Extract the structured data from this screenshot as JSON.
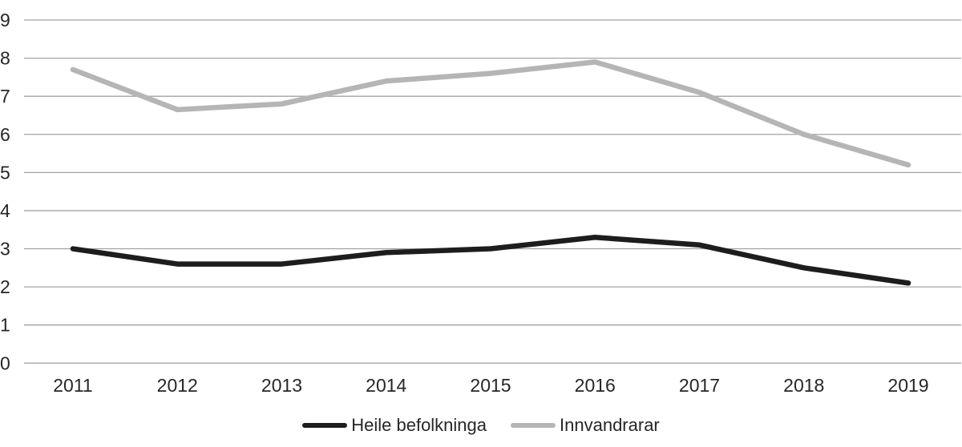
{
  "chart_data": {
    "type": "line",
    "title": "",
    "xlabel": "",
    "ylabel": "",
    "categories": [
      "2011",
      "2012",
      "2013",
      "2014",
      "2015",
      "2016",
      "2017",
      "2018",
      "2019"
    ],
    "series": [
      {
        "name": "Heile befolkninga",
        "color": "#1d1d1b",
        "values": [
          3.0,
          2.6,
          2.6,
          2.9,
          3.0,
          3.3,
          3.1,
          2.5,
          2.1
        ]
      },
      {
        "name": "Innvandrarar",
        "color": "#b5b5b5",
        "values": [
          7.7,
          6.65,
          6.8,
          7.4,
          7.6,
          7.9,
          7.1,
          6.0,
          5.2
        ]
      }
    ],
    "ylim": [
      0,
      9
    ],
    "ytick_interval": 1,
    "yticks": [
      "0",
      "1",
      "2",
      "3",
      "4",
      "5",
      "6",
      "7",
      "8",
      "9"
    ],
    "grid": "horizontal",
    "gridline_color": "#a3a3a3",
    "axis_text_color": "#262626",
    "legend_position": "bottom-center"
  }
}
